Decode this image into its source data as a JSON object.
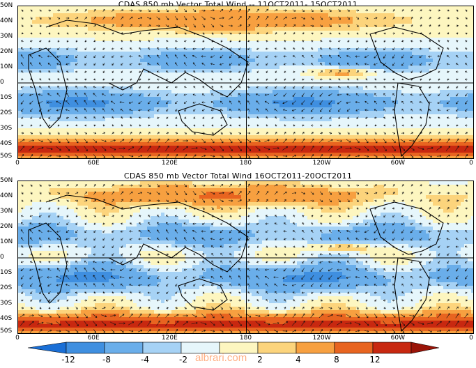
{
  "chart_data": [
    {
      "type": "heatmap",
      "title": "CDAS 850 mb Vector Total Wind -- 11OCT2011- 15OCT2011",
      "x_tick_labels": [
        "0",
        "60E",
        "120E",
        "180",
        "120W",
        "60W",
        "0"
      ],
      "y_tick_labels": [
        "50N",
        "40N",
        "30N",
        "20N",
        "10N",
        "0",
        "10S",
        "20S",
        "30S",
        "40S",
        "50S"
      ],
      "xlim": [
        0,
        360
      ],
      "ylim": [
        -50,
        50
      ]
    },
    {
      "type": "heatmap",
      "title": "CDAS 850 mb Vector Total Wind 16OCT2011-20OCT2011",
      "x_tick_labels": [
        "0",
        "60E",
        "120E",
        "180",
        "120W",
        "60W",
        "0"
      ],
      "y_tick_labels": [
        "50N",
        "40N",
        "30N",
        "20N",
        "10N",
        "0",
        "10S",
        "20S",
        "30S",
        "40S",
        "50S"
      ],
      "xlim": [
        0,
        360
      ],
      "ylim": [
        -50,
        50
      ]
    }
  ],
  "colorbar": {
    "labels": [
      "-12",
      "-8",
      "-4",
      "-2",
      "2",
      "4",
      "8",
      "12"
    ],
    "colors": [
      "#1a6fd6",
      "#3f8fe0",
      "#6aaeea",
      "#a6d2f5",
      "#e6f6fb",
      "#fdf6c0",
      "#fcd47c",
      "#f7a040",
      "#e86420",
      "#c82810",
      "#9a1408"
    ]
  },
  "watermark": "albrari.com"
}
